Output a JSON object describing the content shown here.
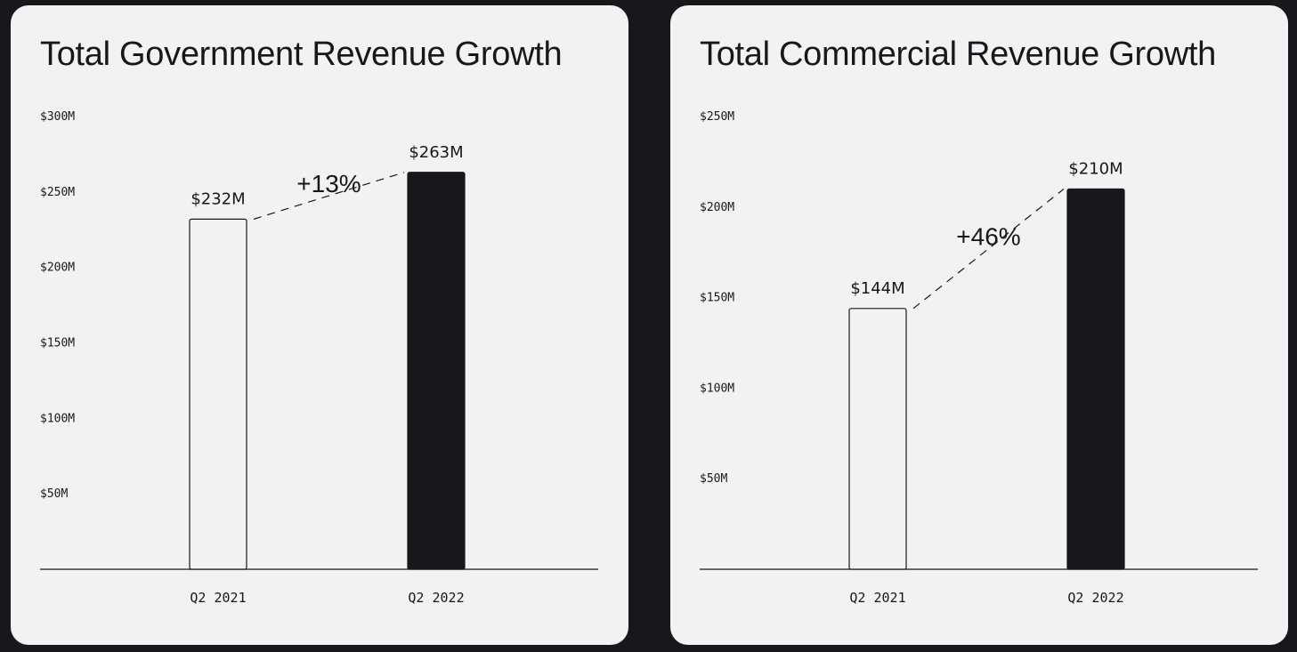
{
  "colors": {
    "background": "#17181c",
    "card": "#f2f2f2",
    "bar_previous": "#f2f2f2",
    "bar_current": "#17181c",
    "ink": "#17181c"
  },
  "chart_data": [
    {
      "type": "bar",
      "title": "Total Government Revenue Growth",
      "categories": [
        "Q2 2021",
        "Q2 2022"
      ],
      "values": [
        232,
        263
      ],
      "value_labels": [
        "$232M",
        "$263M"
      ],
      "ylim": [
        0,
        300
      ],
      "yticks": [
        {
          "value": 50,
          "label": "$50M"
        },
        {
          "value": 100,
          "label": "$100M"
        },
        {
          "value": 150,
          "label": "$150M"
        },
        {
          "value": 200,
          "label": "$200M"
        },
        {
          "value": 250,
          "label": "$250M"
        },
        {
          "value": 300,
          "label": "$300M"
        }
      ],
      "growth_label": "+13%",
      "grid": false,
      "legend": "none"
    },
    {
      "type": "bar",
      "title": "Total Commercial Revenue Growth",
      "categories": [
        "Q2 2021",
        "Q2 2022"
      ],
      "values": [
        144,
        210
      ],
      "value_labels": [
        "$144M",
        "$210M"
      ],
      "ylim": [
        0,
        250
      ],
      "yticks": [
        {
          "value": 50,
          "label": "$50M"
        },
        {
          "value": 100,
          "label": "$100M"
        },
        {
          "value": 150,
          "label": "$150M"
        },
        {
          "value": 200,
          "label": "$200M"
        },
        {
          "value": 250,
          "label": "$250M"
        }
      ],
      "growth_label": "+46%",
      "grid": false,
      "legend": "none"
    }
  ]
}
